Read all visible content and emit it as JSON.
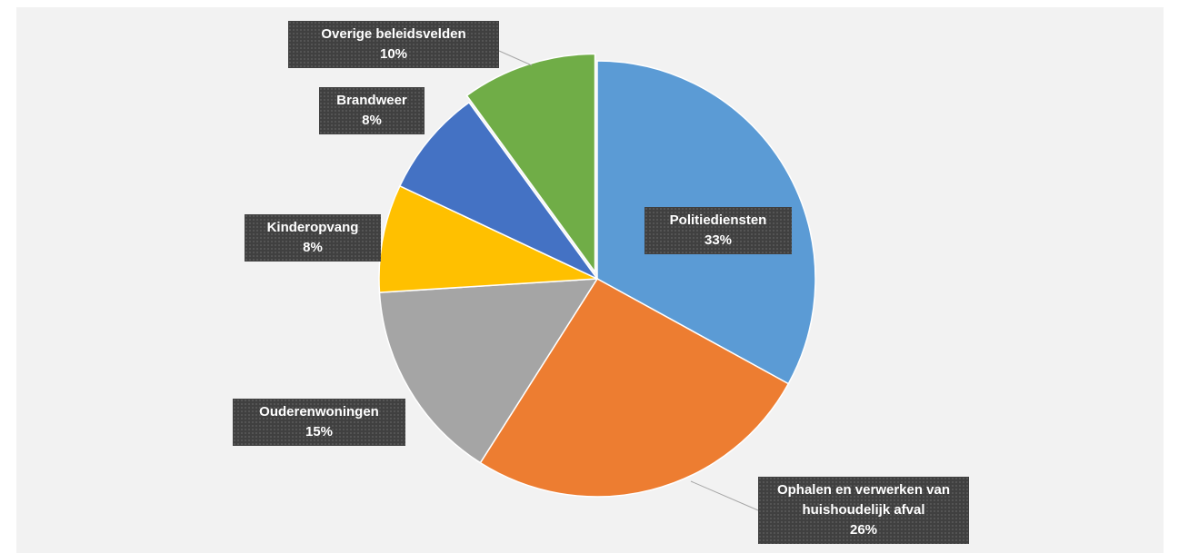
{
  "chart_data": {
    "type": "pie",
    "categories": [
      "Politiediensten",
      "Ophalen en verwerken van huishoudelijk afval",
      "Ouderenwoningen",
      "Kinderopvang",
      "Brandweer",
      "Overige beleidsvelden"
    ],
    "values": [
      33,
      26,
      15,
      8,
      8,
      10
    ],
    "value_labels": [
      "33%",
      "26%",
      "15%",
      "8%",
      "8%",
      "10%"
    ],
    "colors": [
      "#5b9bd5",
      "#ed7d31",
      "#a5a5a5",
      "#ffc000",
      "#4472c4",
      "#70ad47"
    ]
  }
}
